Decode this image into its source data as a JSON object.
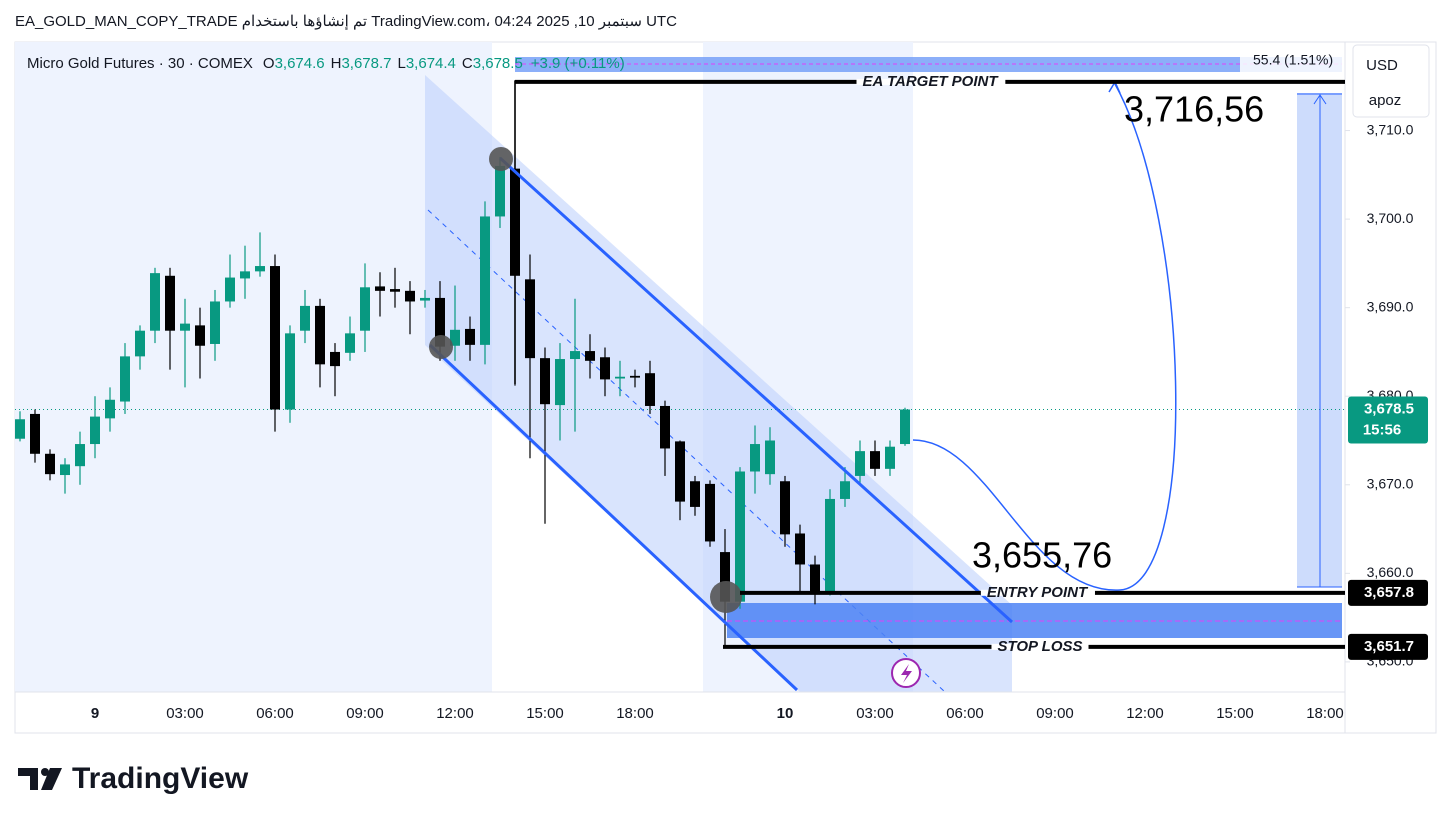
{
  "header": {
    "caption": "EA_GOLD_MAN_COPY_TRADE تم إنشاؤها باستخدام TradingView.com، 04:24 2025 ,10 سبتمبر UTC"
  },
  "footer": {
    "brand": "TradingView"
  },
  "chart_data": {
    "type": "candlestick",
    "title": "Micro Gold Futures · 30 · COMEX",
    "ohlc_legend": [
      {
        "name": "O",
        "value": 3674.6,
        "label": "3,674.6"
      },
      {
        "name": "H",
        "value": 3678.7,
        "label": "3,678.7"
      },
      {
        "name": "L",
        "value": 3674.4,
        "label": "3,674.4"
      },
      {
        "name": "C",
        "value": 3678.5,
        "label": "3,678.5"
      }
    ],
    "change_label": "+3.9 (+0.11%)",
    "up_color": "#089981",
    "down_color": "#000000",
    "categories": [
      null,
      null,
      null,
      null,
      null,
      "9",
      null,
      null,
      null,
      null,
      null,
      "03:00",
      null,
      null,
      null,
      null,
      null,
      "06:00",
      null,
      null,
      null,
      null,
      null,
      "09:00",
      null,
      null,
      null,
      null,
      null,
      "12:00",
      null,
      null,
      null,
      null,
      null,
      "15:00",
      null,
      null,
      null,
      null,
      null,
      "18:00",
      null,
      null,
      null,
      null,
      null,
      null,
      null,
      null,
      null,
      "10",
      null,
      null,
      null,
      null,
      null,
      "03:00",
      null,
      null,
      null,
      null,
      null,
      "06:00",
      null,
      null,
      null,
      null,
      null,
      "09:00",
      null,
      null,
      null,
      null,
      null,
      "12:00",
      null,
      null,
      null,
      null,
      null,
      "15:00",
      null,
      null,
      null,
      null,
      null,
      "18:00"
    ],
    "open": [
      3675.2,
      3678.0,
      3673.5,
      3671.1,
      3672.1,
      3674.6,
      3677.5,
      3679.4,
      3684.5,
      3687.4,
      3693.6,
      3687.4,
      3688.0,
      3685.9,
      3690.7,
      3693.3,
      3694.1,
      3694.7,
      3678.5,
      3687.4,
      3690.2,
      3685.0,
      3684.9,
      3687.4,
      3692.4,
      3692.1,
      3691.9,
      3690.8,
      3691.1,
      3685.7,
      3687.6,
      3685.8,
      3700.3,
      3705.7,
      3693.2,
      3684.3,
      3679.0,
      3684.2,
      3685.1,
      3684.4,
      3682.0,
      3682.3,
      3682.6,
      3678.9,
      3674.9,
      3670.4,
      3670.1,
      3662.4,
      3656.8,
      3671.5,
      3671.2,
      3670.4,
      3664.5,
      3661.0,
      3657.9,
      3668.4,
      3671.0,
      3673.8,
      3671.8,
      3674.6,
      null,
      null,
      null,
      null,
      null,
      null,
      null,
      null,
      null,
      null,
      null,
      null,
      null,
      null,
      null,
      null,
      null,
      null,
      null,
      null,
      null,
      null,
      null,
      null,
      null,
      null,
      null,
      null
    ],
    "high": [
      3678.3,
      3678.5,
      3674.0,
      3673.0,
      3676.0,
      3680.0,
      3681.0,
      3686.0,
      3688.0,
      3694.5,
      3694.5,
      3691.0,
      3690.0,
      3692.0,
      3696.0,
      3697.0,
      3698.5,
      3696.0,
      3688.0,
      3692.0,
      3691.0,
      3686.0,
      3689.0,
      3695.0,
      3694.0,
      3694.5,
      3693.0,
      3692.0,
      3693.0,
      3692.5,
      3689.0,
      3702.0,
      3707.0,
      3715.7,
      3696.0,
      3685.5,
      3686.0,
      3691.0,
      3687.0,
      3685.5,
      3684.0,
      3683.0,
      3684.0,
      3679.5,
      3675.0,
      3671.0,
      3670.5,
      3665.0,
      3672.0,
      3676.7,
      3676.5,
      3671.0,
      3665.5,
      3662.0,
      3669.5,
      3672.0,
      3675.0,
      3675.0,
      3675.0,
      3678.7,
      null,
      null,
      null,
      null,
      null,
      null,
      null,
      null,
      null,
      null,
      null,
      null,
      null,
      null,
      null,
      null,
      null,
      null,
      null,
      null,
      null,
      null,
      null,
      null,
      null,
      null,
      null,
      null
    ],
    "low": [
      3674.9,
      3672.5,
      3670.5,
      3669.0,
      3670.0,
      3673.0,
      3676.0,
      3678.0,
      3683.0,
      3686.0,
      3683.0,
      3681.0,
      3682.0,
      3684.0,
      3690.0,
      3691.0,
      3693.5,
      3676.0,
      3677.0,
      3686.0,
      3681.0,
      3680.0,
      3684.0,
      3685.0,
      3689.0,
      3690.0,
      3687.0,
      3690.0,
      3684.0,
      3684.0,
      3684.0,
      3683.6,
      3699.0,
      3681.2,
      3673.0,
      3665.6,
      3675.0,
      3676.0,
      3682.0,
      3680.0,
      3680.0,
      3681.0,
      3678.0,
      3671.0,
      3666.0,
      3666.5,
      3663.0,
      3651.9,
      3656.0,
      3669.0,
      3670.0,
      3663.0,
      3658.0,
      3656.5,
      3657.5,
      3667.5,
      3670.0,
      3671.0,
      3671.0,
      3674.4,
      null,
      null,
      null,
      null,
      null,
      null,
      null,
      null,
      null,
      null,
      null,
      null,
      null,
      null,
      null,
      null,
      null,
      null,
      null,
      null,
      null,
      null,
      null,
      null,
      null,
      null,
      null,
      null
    ],
    "close": [
      3677.4,
      3673.5,
      3671.2,
      3672.3,
      3674.6,
      3677.7,
      3679.6,
      3684.5,
      3687.4,
      3693.9,
      3687.4,
      3688.2,
      3685.7,
      3690.7,
      3693.4,
      3694.1,
      3694.7,
      3678.5,
      3687.1,
      3690.2,
      3683.6,
      3683.4,
      3687.1,
      3692.3,
      3691.9,
      3691.8,
      3690.7,
      3691.1,
      3685.6,
      3687.5,
      3685.8,
      3700.3,
      3706.0,
      3693.6,
      3684.3,
      3679.1,
      3684.2,
      3685.1,
      3684.0,
      3681.9,
      3682.2,
      3682.1,
      3678.9,
      3674.1,
      3668.1,
      3667.5,
      3663.6,
      3656.8,
      3671.5,
      3674.6,
      3675.0,
      3664.4,
      3661.0,
      3657.9,
      3668.4,
      3670.4,
      3673.8,
      3671.8,
      3674.3,
      3678.5,
      null,
      null,
      null,
      null,
      null,
      null,
      null,
      null,
      null,
      null,
      null,
      null,
      null,
      null,
      null,
      null,
      null,
      null,
      null,
      null,
      null,
      null,
      null,
      null,
      null,
      null,
      null,
      null
    ],
    "ylim": [
      3646.6,
      3720
    ],
    "yticks": [
      {
        "value": 3650,
        "label": "3,650.0"
      },
      {
        "value": 3660,
        "label": "3,660.0"
      },
      {
        "value": 3670,
        "label": "3,670.0"
      },
      {
        "value": 3680,
        "label": "3,680.0"
      },
      {
        "value": 3690,
        "label": "3,690.0"
      },
      {
        "value": 3700,
        "label": "3,700.0"
      },
      {
        "value": 3710,
        "label": "3,710.0"
      }
    ],
    "axis_badges": [
      "USD",
      "apoz"
    ],
    "price_labels": [
      {
        "value": 3678.5,
        "label": "3,678.5",
        "color": "#089981",
        "countdown": "15:56"
      },
      {
        "value": 3657.8,
        "label": "3,657.8",
        "color": "#000000"
      },
      {
        "value": 3651.7,
        "label": "3,651.7",
        "color": "#000000"
      }
    ],
    "annotations": [
      {
        "text": "EA TARGET POINT",
        "value": 3715.5
      },
      {
        "text": "ENTRY POINT",
        "value": 3657.8
      },
      {
        "text": "STOP LOSS",
        "value": 3651.7
      }
    ],
    "callouts": [
      "3,716,56",
      "3,655,76"
    ],
    "measure_label": "55.4 (1.51%)"
  }
}
